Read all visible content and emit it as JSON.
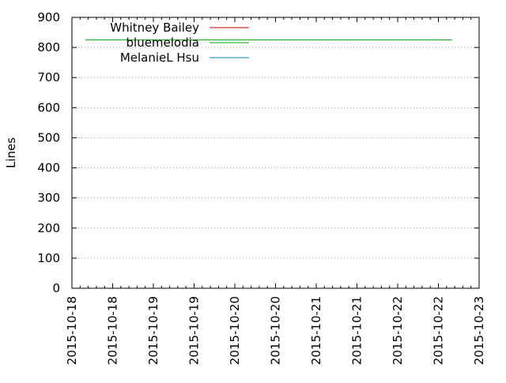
{
  "chart_data": {
    "type": "line",
    "title": "",
    "xlabel": "",
    "ylabel": "Lines",
    "ylim": [
      0,
      900
    ],
    "yticks": [
      0,
      100,
      200,
      300,
      400,
      500,
      600,
      700,
      800,
      900
    ],
    "xlim": [
      "2015-10-18",
      "2015-10-23"
    ],
    "xtick_labels": [
      "2015-10-18",
      "2015-10-18",
      "2015-10-19",
      "2015-10-19",
      "2015-10-20",
      "2015-10-20",
      "2015-10-21",
      "2015-10-21",
      "2015-10-22",
      "2015-10-22",
      "2015-10-23"
    ],
    "grid": "horizontal dotted",
    "legend_position": "top-left",
    "series": [
      {
        "name": "Whitney Bailey",
        "color": "#c00000",
        "points": []
      },
      {
        "name": "bluemelodia",
        "color": "#00a000",
        "points": [
          [
            "2015-10-18 04:00",
            825
          ],
          [
            "2015-10-22 16:00",
            825
          ]
        ]
      },
      {
        "name": "MelanieL Hsu",
        "color": "#0080b0",
        "points": []
      }
    ]
  }
}
